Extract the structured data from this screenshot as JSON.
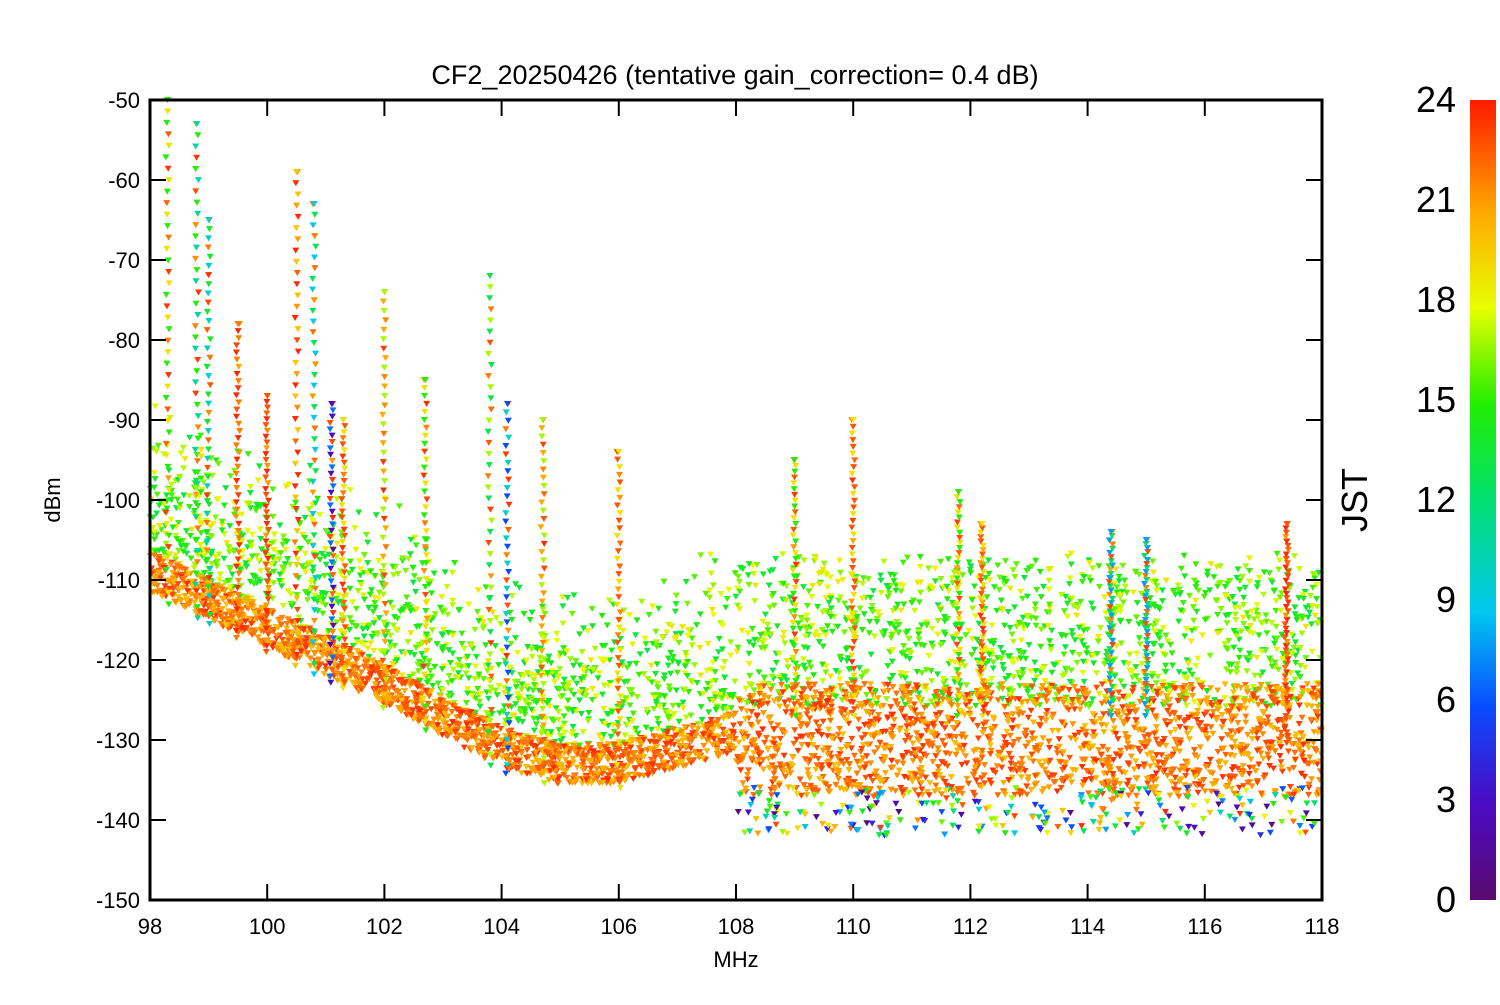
{
  "chart_data": {
    "type": "scatter",
    "title": "CF2_20250426 (tentative gain_correction=  0.4 dB)",
    "xlabel": "MHz",
    "ylabel": "dBm",
    "xlim": [
      98,
      118
    ],
    "ylim": [
      -150,
      -50
    ],
    "x_ticks": [
      "98",
      "100",
      "102",
      "104",
      "106",
      "108",
      "110",
      "112",
      "114",
      "116",
      "118"
    ],
    "y_ticks": [
      "-50",
      "-60",
      "-70",
      "-80",
      "-90",
      "-100",
      "-110",
      "-120",
      "-130",
      "-140",
      "-150"
    ],
    "colorbar": {
      "label": "JST",
      "range": [
        0,
        24
      ],
      "ticks": [
        "0",
        "3",
        "6",
        "9",
        "12",
        "15",
        "18",
        "21",
        "24"
      ],
      "colormap": "rainbow (purple-blue-cyan-green-yellow-orange-red)"
    },
    "grid": false,
    "marker": "small inverted triangle",
    "noise_floor": {
      "below_108MHz": [
        [
          98,
          -110
        ],
        [
          100,
          -117
        ],
        [
          102,
          -124
        ],
        [
          104,
          -132
        ],
        [
          105,
          -134
        ],
        [
          106,
          -134
        ],
        [
          107,
          -132
        ],
        [
          108,
          -130
        ]
      ],
      "above_108MHz": {
        "band": [
          -137,
          -123
        ],
        "x": [
          108,
          118
        ]
      }
    },
    "peaks": [
      {
        "x": 98.3,
        "y": -50,
        "jst": 15
      },
      {
        "x": 98.8,
        "y": -53,
        "jst": 11
      },
      {
        "x": 99.0,
        "y": -65,
        "jst": 10
      },
      {
        "x": 99.5,
        "y": -78,
        "jst": 22
      },
      {
        "x": 100.0,
        "y": -87,
        "jst": 23
      },
      {
        "x": 100.5,
        "y": -59,
        "jst": 20
      },
      {
        "x": 100.8,
        "y": -63,
        "jst": 9
      },
      {
        "x": 101.1,
        "y": -88,
        "jst": 3
      },
      {
        "x": 101.3,
        "y": -90,
        "jst": 19
      },
      {
        "x": 102.0,
        "y": -74,
        "jst": 17
      },
      {
        "x": 102.7,
        "y": -85,
        "jst": 15
      },
      {
        "x": 103.8,
        "y": -72,
        "jst": 13
      },
      {
        "x": 104.1,
        "y": -88,
        "jst": 6
      },
      {
        "x": 104.7,
        "y": -90,
        "jst": 17
      },
      {
        "x": 106.0,
        "y": -94,
        "jst": 19
      },
      {
        "x": 109.0,
        "y": -95,
        "jst": 15
      },
      {
        "x": 110.0,
        "y": -90,
        "jst": 19
      },
      {
        "x": 111.8,
        "y": -99,
        "jst": 15
      },
      {
        "x": 112.2,
        "y": -103,
        "jst": 19
      },
      {
        "x": 114.4,
        "y": -104,
        "jst": 8
      },
      {
        "x": 115.0,
        "y": -105,
        "jst": 8
      },
      {
        "x": 117.4,
        "y": -103,
        "jst": 23
      }
    ]
  }
}
